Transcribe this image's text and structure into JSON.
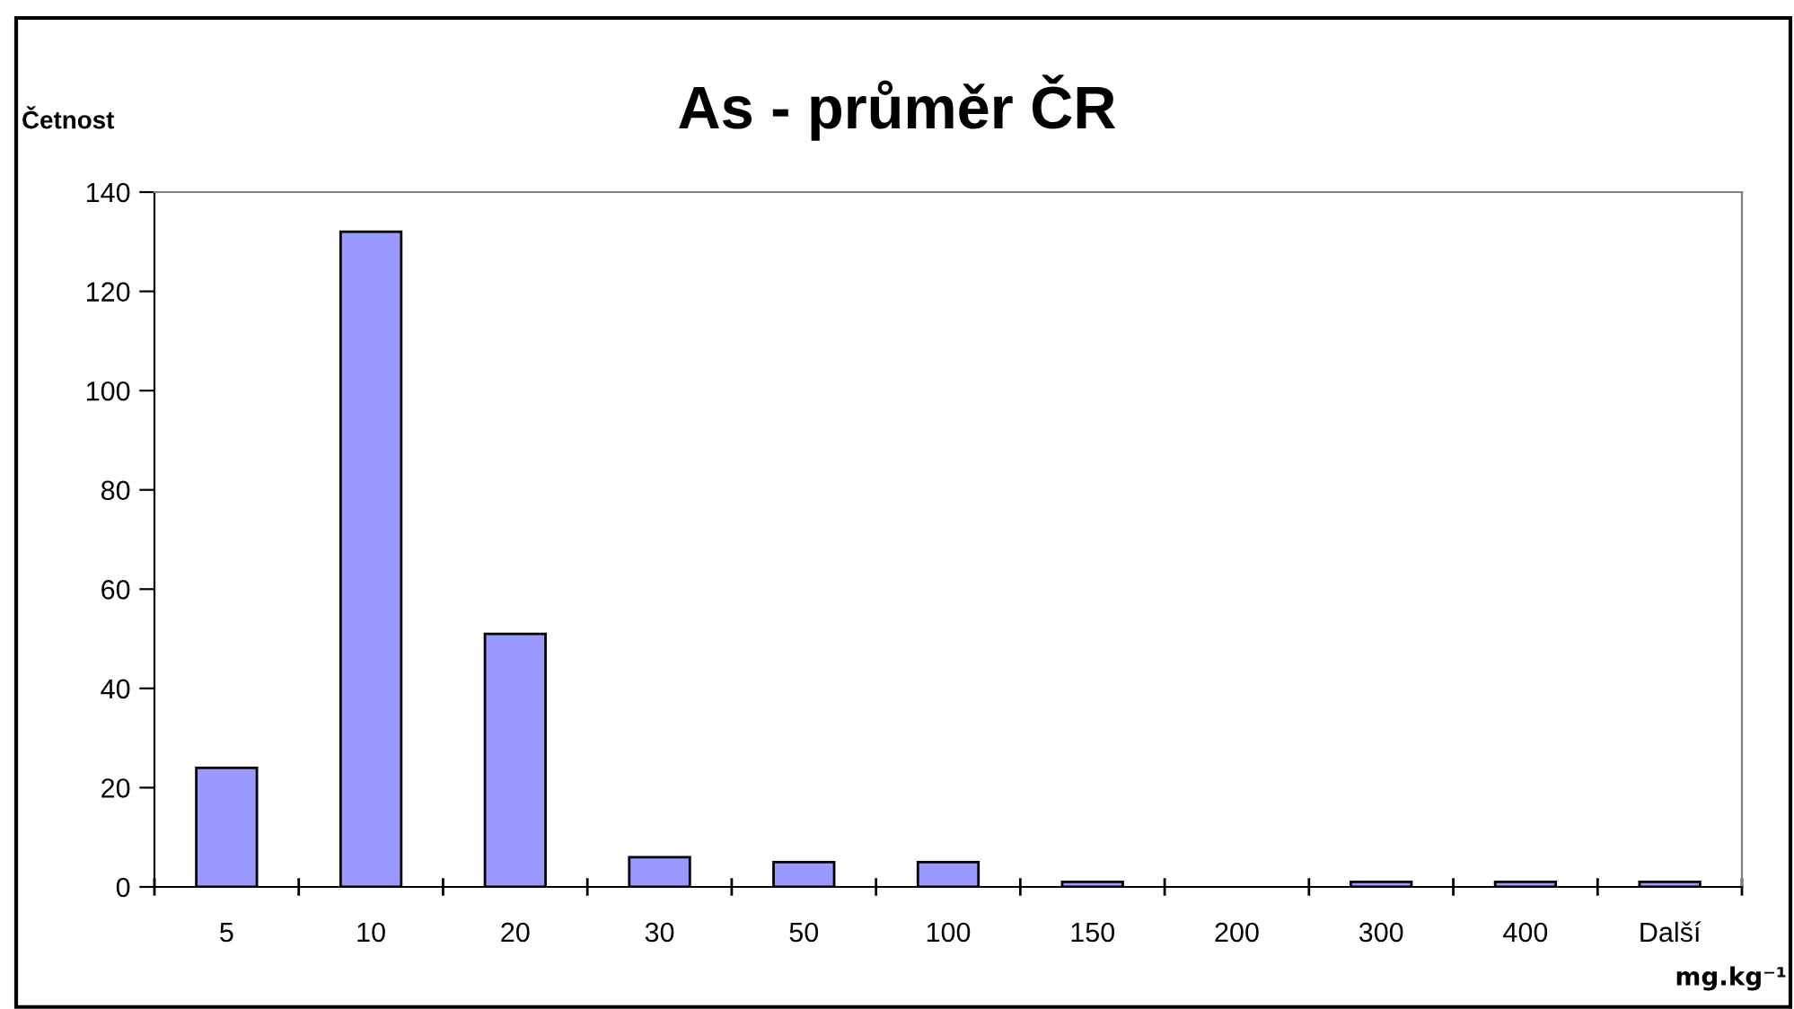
{
  "chart_data": {
    "type": "bar",
    "title": "As - průměr ČR",
    "ylabel": "Četnost",
    "xlabel": "mg.kg⁻¹",
    "categories": [
      "5",
      "10",
      "20",
      "30",
      "50",
      "100",
      "150",
      "200",
      "300",
      "400",
      "Další"
    ],
    "values": [
      24,
      132,
      51,
      6,
      5,
      5,
      1,
      0,
      1,
      1,
      1
    ],
    "color": "#9999ff",
    "ylim": [
      0,
      140
    ],
    "yticks": [
      0,
      20,
      40,
      60,
      80,
      100,
      120,
      140
    ],
    "grid": false,
    "legend": false
  }
}
